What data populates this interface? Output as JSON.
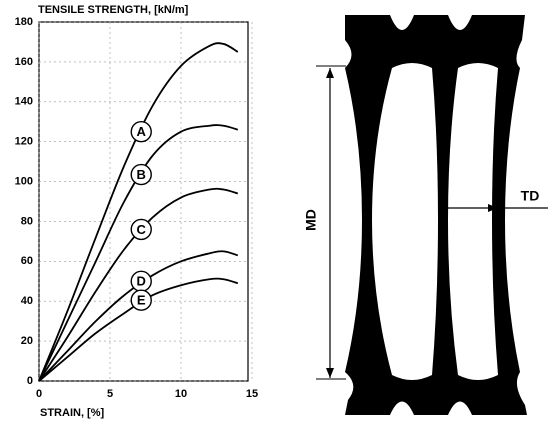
{
  "chart_data": {
    "type": "line",
    "title": "TENSILE STRENGTH, [kN/m]",
    "x_label": "STRAIN, [%]",
    "x": [
      0,
      2,
      4,
      6,
      8,
      10,
      12,
      13,
      14
    ],
    "series": [
      {
        "name": "A",
        "color": "#000000",
        "values": [
          0,
          35,
          72,
          108,
          138,
          158,
          168,
          169,
          165
        ]
      },
      {
        "name": "B",
        "color": "#000000",
        "values": [
          0,
          30,
          60,
          90,
          113,
          125,
          128,
          128,
          126
        ]
      },
      {
        "name": "C",
        "color": "#000000",
        "values": [
          0,
          22,
          45,
          66,
          82,
          92,
          96,
          96,
          94
        ]
      },
      {
        "name": "D",
        "color": "#000000",
        "values": [
          0,
          15,
          30,
          43,
          53,
          60,
          64,
          65,
          63
        ]
      },
      {
        "name": "E",
        "color": "#000000",
        "values": [
          0,
          12,
          24,
          34,
          43,
          48,
          51,
          51,
          49
        ]
      }
    ],
    "xlim": [
      0,
      15
    ],
    "xticks": [
      0,
      5,
      10,
      15
    ],
    "ylim": [
      0,
      180
    ],
    "yticks": [
      0,
      20,
      40,
      60,
      80,
      100,
      120,
      140,
      160,
      180
    ],
    "grid": true
  },
  "diagram": {
    "md_label": "MD",
    "td_label": "TD"
  }
}
